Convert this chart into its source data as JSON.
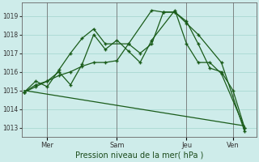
{
  "xlabel": "Pression niveau de la mer( hPa )",
  "bg_color": "#ceecea",
  "grid_color": "#a8d8d2",
  "line_color": "#1a5c1a",
  "ylim": [
    1012.5,
    1019.7
  ],
  "xtick_labels": [
    "Mer",
    "Sam",
    "Jeu",
    "Ven"
  ],
  "xtick_positions": [
    1,
    4,
    7,
    9
  ],
  "ytick_vals": [
    1013,
    1014,
    1015,
    1016,
    1017,
    1018,
    1019
  ],
  "series": [
    {
      "x": [
        0,
        0.5,
        1.0,
        1.5,
        2.0,
        2.5,
        3.0,
        3.5,
        4.5,
        5.5,
        6.0,
        6.5,
        7.0,
        7.5,
        8.0,
        8.5,
        9.0,
        9.5
      ],
      "y": [
        1014.9,
        1015.5,
        1015.2,
        1016.1,
        1017.0,
        1017.8,
        1018.3,
        1017.5,
        1017.5,
        1019.3,
        1019.2,
        1019.2,
        1018.7,
        1017.5,
        1016.2,
        1016.0,
        1015.0,
        1013.0
      ]
    },
    {
      "x": [
        0,
        0.5,
        1.0,
        1.5,
        2.0,
        2.5,
        3.0,
        3.5,
        4.0,
        4.5,
        5.0,
        5.5,
        6.0,
        6.5,
        7.0,
        7.5,
        8.5,
        9.5
      ],
      "y": [
        1014.9,
        1015.3,
        1015.5,
        1015.8,
        1016.0,
        1016.3,
        1016.5,
        1016.5,
        1016.6,
        1017.5,
        1017.0,
        1017.5,
        1019.2,
        1019.2,
        1018.6,
        1018.0,
        1016.5,
        1012.8
      ]
    },
    {
      "x": [
        0,
        0.5,
        1.0,
        1.5,
        2.0,
        2.5,
        3.0,
        3.5,
        4.0,
        4.5,
        5.0,
        5.5,
        6.5,
        7.0,
        7.5,
        8.0,
        8.5,
        9.5
      ],
      "y": [
        1014.9,
        1015.2,
        1015.5,
        1016.0,
        1015.3,
        1016.4,
        1018.0,
        1017.2,
        1017.7,
        1017.1,
        1016.5,
        1017.7,
        1019.3,
        1017.5,
        1016.5,
        1016.5,
        1015.9,
        1013.0
      ]
    },
    {
      "x": [
        0,
        9.5
      ],
      "y": [
        1015.0,
        1013.1
      ]
    }
  ],
  "vlines": [
    1,
    4,
    7,
    9
  ],
  "xlim": [
    -0.1,
    10.0
  ]
}
